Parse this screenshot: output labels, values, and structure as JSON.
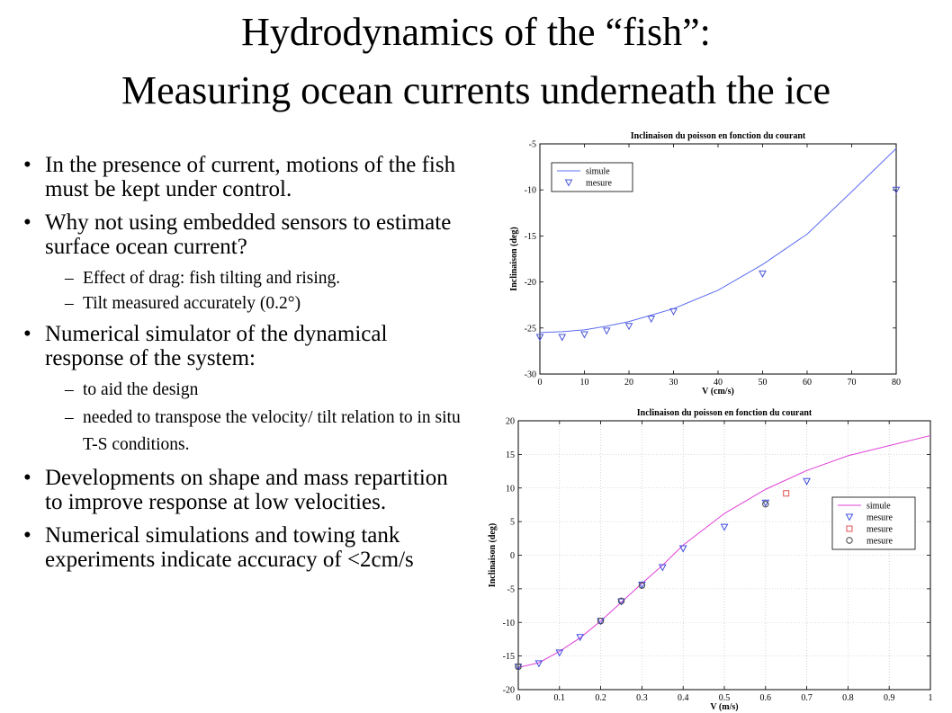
{
  "title_line1": "Hydrodynamics of the “fish”:",
  "title_line2": "Measuring ocean currents underneath the ice",
  "bullets": [
    {
      "text": "In the presence of current, motions of the fish must be kept under control."
    },
    {
      "text": "Why not using embedded sensors to estimate surface ocean current?"
    },
    {
      "text": "Effect of drag: fish tilting and rising."
    },
    {
      "text": "Tilt measured accurately (0.2°)"
    },
    {
      "text": "Numerical simulator of the dynamical response of the system:"
    },
    {
      "text": "to aid the design"
    },
    {
      "text": "needed to transpose the velocity/ tilt relation to in situ T-S conditions."
    },
    {
      "text": "Developments on shape and mass repartition to improve response at low velocities."
    },
    {
      "text": "Numerical simulations and towing tank experiments  indicate accuracy of <2cm/s"
    }
  ],
  "dash1": "–",
  "dash2": "–",
  "dash3": "–",
  "dash4": "–",
  "chart_data": [
    {
      "type": "line",
      "title": "Inclinaison du poisson en fonction du courant",
      "xlabel": "V (cm/s)",
      "ylabel": "Inclinaison (deg)",
      "xlim": [
        0,
        80
      ],
      "ylim": [
        -30,
        -5
      ],
      "xticks": [
        0,
        10,
        20,
        30,
        40,
        50,
        60,
        70,
        80
      ],
      "yticks": [
        -30,
        -25,
        -20,
        -15,
        -10,
        -5
      ],
      "grid": false,
      "legend_position": "top-left",
      "series": [
        {
          "name": "simule",
          "style": "line",
          "color": "#5b6cf0",
          "x": [
            0,
            5,
            10,
            15,
            20,
            25,
            30,
            40,
            50,
            60,
            70,
            80
          ],
          "y": [
            -25.5,
            -25.4,
            -25.2,
            -24.8,
            -24.3,
            -23.6,
            -22.9,
            -20.9,
            -18.1,
            -14.8,
            -10.2,
            -5.5
          ]
        },
        {
          "name": "mesure",
          "style": "marker",
          "marker": "triangle-down",
          "color": "#4a55d6",
          "x": [
            0,
            5,
            10,
            15,
            20,
            25,
            30,
            50,
            80
          ],
          "y": [
            -26.0,
            -26.0,
            -25.7,
            -25.3,
            -24.8,
            -24.0,
            -23.2,
            -19.1,
            -10.0
          ]
        }
      ]
    },
    {
      "type": "line",
      "title": "Inclinaison du poisson en fonction du courant",
      "xlabel": "V (m/s)",
      "ylabel": "Inclinaison (deg)",
      "xlim": [
        0,
        1
      ],
      "ylim": [
        -20,
        20
      ],
      "xticks": [
        0,
        0.1,
        0.2,
        0.3,
        0.4,
        0.5,
        0.6,
        0.7,
        0.8,
        0.9,
        1
      ],
      "yticks": [
        -20,
        -15,
        -10,
        -5,
        0,
        5,
        10,
        15,
        20
      ],
      "grid": true,
      "legend_position": "right",
      "series": [
        {
          "name": "simule",
          "style": "line",
          "color": "#e040d8",
          "x": [
            0,
            0.05,
            0.1,
            0.15,
            0.2,
            0.25,
            0.3,
            0.35,
            0.4,
            0.5,
            0.6,
            0.7,
            0.8,
            0.9,
            1.0
          ],
          "y": [
            -16.7,
            -16.0,
            -14.3,
            -12.3,
            -9.8,
            -7.0,
            -4.2,
            -1.5,
            1.5,
            6.2,
            9.8,
            12.6,
            14.8,
            16.3,
            17.8
          ]
        },
        {
          "name": "mesure",
          "style": "marker",
          "marker": "triangle-down",
          "color": "#3d4de0",
          "x": [
            0,
            0.05,
            0.1,
            0.15,
            0.2,
            0.25,
            0.3,
            0.35,
            0.4,
            0.5,
            0.6,
            0.7
          ],
          "y": [
            -16.6,
            -16.1,
            -14.5,
            -12.2,
            -9.8,
            -6.9,
            -4.4,
            -1.8,
            1.0,
            4.2,
            7.8,
            11.0
          ]
        },
        {
          "name": "mesure",
          "style": "marker",
          "marker": "square",
          "color": "#e05050",
          "x": [
            0.65
          ],
          "y": [
            9.2
          ]
        },
        {
          "name": "mesure",
          "style": "marker",
          "marker": "circle",
          "color": "#444444",
          "x": [
            0,
            0.2,
            0.25,
            0.3,
            0.6
          ],
          "y": [
            -16.6,
            -9.8,
            -6.8,
            -4.5,
            7.6
          ]
        }
      ]
    }
  ]
}
